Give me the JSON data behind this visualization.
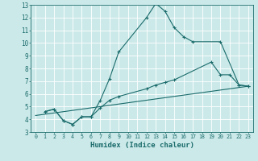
{
  "title": "",
  "xlabel": "Humidex (Indice chaleur)",
  "ylabel": "",
  "xlim": [
    -0.5,
    23.5
  ],
  "ylim": [
    3,
    13
  ],
  "xticks": [
    0,
    1,
    2,
    3,
    4,
    5,
    6,
    7,
    8,
    9,
    10,
    11,
    12,
    13,
    14,
    15,
    16,
    17,
    18,
    19,
    20,
    21,
    22,
    23
  ],
  "yticks": [
    3,
    4,
    5,
    6,
    7,
    8,
    9,
    10,
    11,
    12,
    13
  ],
  "bg_color": "#cce9e9",
  "grid_color": "#ffffff",
  "line_color": "#1a6b6b",
  "lines": [
    {
      "x": [
        1,
        2,
        3,
        4,
        5,
        6,
        7,
        8,
        9,
        12,
        13,
        14,
        15,
        16,
        17,
        20,
        22,
        23
      ],
      "y": [
        4.6,
        4.8,
        3.9,
        3.6,
        4.2,
        4.2,
        5.5,
        7.2,
        9.3,
        12.0,
        13.1,
        12.5,
        11.2,
        10.5,
        10.1,
        10.1,
        6.7,
        6.6
      ]
    },
    {
      "x": [
        1,
        2,
        3,
        4,
        5,
        6,
        7,
        8,
        9,
        12,
        13,
        14,
        15,
        19,
        20,
        21,
        22,
        23
      ],
      "y": [
        4.6,
        4.8,
        3.9,
        3.6,
        4.2,
        4.2,
        4.9,
        5.5,
        5.8,
        6.4,
        6.7,
        6.9,
        7.1,
        8.5,
        7.5,
        7.5,
        6.7,
        6.6
      ]
    },
    {
      "x": [
        0,
        23
      ],
      "y": [
        4.3,
        6.6
      ]
    }
  ]
}
